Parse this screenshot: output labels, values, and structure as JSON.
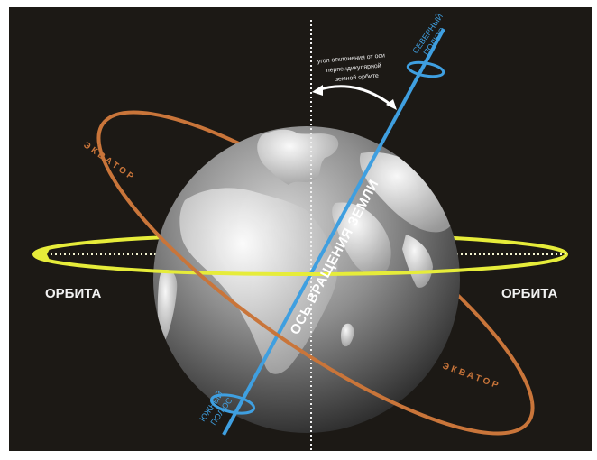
{
  "diagram": {
    "orbit_label_left": "ОРБИТА",
    "orbit_label_right": "ОРБИТА",
    "axis_label": "ОСЬ ВРАЩЕНИЯ ЗЕМЛИ",
    "equator_label_top": "ЭКВАТОР",
    "equator_label_bottom": "ЭКВАТОР",
    "north_pole_line1": "СЕВЕРНЫЙ",
    "north_pole_line2": "ПОЛЮС",
    "south_pole_line1": "ЮЖНЫЙ",
    "south_pole_line2": "ПОЛЮС",
    "tilt_line1": "угол отклонения от оси",
    "tilt_line2": "перпендикулярной",
    "tilt_line3": "земной орбите"
  },
  "colors": {
    "background": "#1c1915",
    "orbit": "#e6ec3a",
    "equator": "#c9753a",
    "axis": "#3f9fe0",
    "globe": "#7a7a7a"
  },
  "icons": [
    "globe",
    "orbit-arrow-left",
    "tilt-arrow"
  ]
}
